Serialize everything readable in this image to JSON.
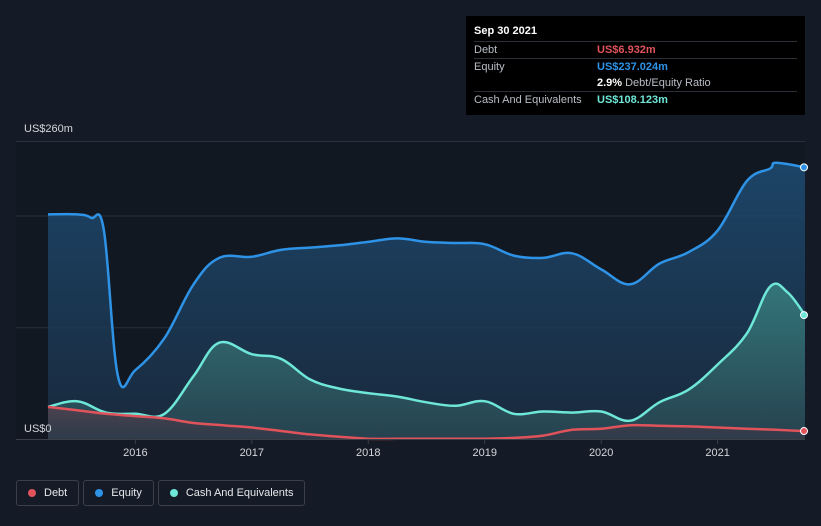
{
  "chart_data": {
    "type": "area",
    "y_unit_label_top": "US$260m",
    "y_unit_label_bottom": "US$0",
    "ylim": [
      0,
      260
    ],
    "xlim": [
      2015.25,
      2021.75
    ],
    "x_ticks": [
      {
        "label": "2016",
        "value": 2016
      },
      {
        "label": "2017",
        "value": 2017
      },
      {
        "label": "2018",
        "value": 2018
      },
      {
        "label": "2019",
        "value": 2019
      },
      {
        "label": "2020",
        "value": 2020
      },
      {
        "label": "2021",
        "value": 2021
      }
    ],
    "series": [
      {
        "name": "Debt",
        "color": "#e0535b",
        "points": [
          [
            2015.25,
            28
          ],
          [
            2015.5,
            25
          ],
          [
            2015.75,
            22
          ],
          [
            2016.0,
            20
          ],
          [
            2016.25,
            18
          ],
          [
            2016.5,
            14
          ],
          [
            2016.75,
            12
          ],
          [
            2017.0,
            10
          ],
          [
            2017.25,
            7
          ],
          [
            2017.5,
            4
          ],
          [
            2017.75,
            2
          ],
          [
            2018.0,
            0.3
          ],
          [
            2018.25,
            0.2
          ],
          [
            2018.5,
            0.2
          ],
          [
            2018.75,
            0.2
          ],
          [
            2019.0,
            0.3
          ],
          [
            2019.25,
            1
          ],
          [
            2019.5,
            3
          ],
          [
            2019.75,
            8
          ],
          [
            2020.0,
            9
          ],
          [
            2020.25,
            12
          ],
          [
            2020.5,
            11.5
          ],
          [
            2020.75,
            11
          ],
          [
            2021.0,
            10
          ],
          [
            2021.25,
            9
          ],
          [
            2021.5,
            8
          ],
          [
            2021.75,
            6.932
          ]
        ]
      },
      {
        "name": "Equity",
        "color": "#2e93e6",
        "points": [
          [
            2015.25,
            196
          ],
          [
            2015.5,
            196
          ],
          [
            2015.62,
            193
          ],
          [
            2015.73,
            182
          ],
          [
            2015.85,
            55
          ],
          [
            2016.0,
            60
          ],
          [
            2016.25,
            88
          ],
          [
            2016.5,
            135
          ],
          [
            2016.72,
            158
          ],
          [
            2017.0,
            159
          ],
          [
            2017.25,
            165
          ],
          [
            2017.5,
            167
          ],
          [
            2017.75,
            169
          ],
          [
            2018.0,
            172
          ],
          [
            2018.25,
            175
          ],
          [
            2018.5,
            172
          ],
          [
            2018.75,
            171
          ],
          [
            2019.0,
            170
          ],
          [
            2019.25,
            160
          ],
          [
            2019.5,
            158
          ],
          [
            2019.75,
            162
          ],
          [
            2020.0,
            148
          ],
          [
            2020.25,
            135
          ],
          [
            2020.5,
            153
          ],
          [
            2020.75,
            163
          ],
          [
            2021.0,
            182
          ],
          [
            2021.25,
            225
          ],
          [
            2021.45,
            236
          ],
          [
            2021.5,
            241
          ],
          [
            2021.75,
            237.024
          ]
        ]
      },
      {
        "name": "Cash And Equivalents",
        "color": "#6ee7d8",
        "points": [
          [
            2015.25,
            28
          ],
          [
            2015.5,
            33
          ],
          [
            2015.75,
            23
          ],
          [
            2016.0,
            22
          ],
          [
            2016.25,
            22
          ],
          [
            2016.5,
            55
          ],
          [
            2016.72,
            84
          ],
          [
            2017.0,
            74
          ],
          [
            2017.25,
            70
          ],
          [
            2017.5,
            52
          ],
          [
            2017.75,
            44
          ],
          [
            2018.0,
            40
          ],
          [
            2018.25,
            37
          ],
          [
            2018.5,
            32
          ],
          [
            2018.75,
            29
          ],
          [
            2019.0,
            33
          ],
          [
            2019.25,
            22
          ],
          [
            2019.5,
            24
          ],
          [
            2019.75,
            23
          ],
          [
            2020.0,
            24
          ],
          [
            2020.25,
            16
          ],
          [
            2020.5,
            32
          ],
          [
            2020.75,
            43
          ],
          [
            2021.0,
            65
          ],
          [
            2021.25,
            92
          ],
          [
            2021.45,
            133
          ],
          [
            2021.6,
            128
          ],
          [
            2021.75,
            108.123
          ]
        ]
      }
    ]
  },
  "tooltip": {
    "date": "Sep 30 2021",
    "rows": [
      {
        "label": "Debt",
        "value": "US$6.932m",
        "color": "#e0535b"
      },
      {
        "label": "Equity",
        "value": "US$237.024m",
        "color": "#2e93e6"
      },
      {
        "ratio_value": "2.9%",
        "ratio_label": "Debt/Equity Ratio"
      },
      {
        "label": "Cash And Equivalents",
        "value": "US$108.123m",
        "color": "#6ee7d8"
      }
    ]
  },
  "legend": [
    {
      "label": "Debt",
      "color": "#e0535b"
    },
    {
      "label": "Equity",
      "color": "#2e93e6"
    },
    {
      "label": "Cash And Equivalents",
      "color": "#6ee7d8"
    }
  ]
}
